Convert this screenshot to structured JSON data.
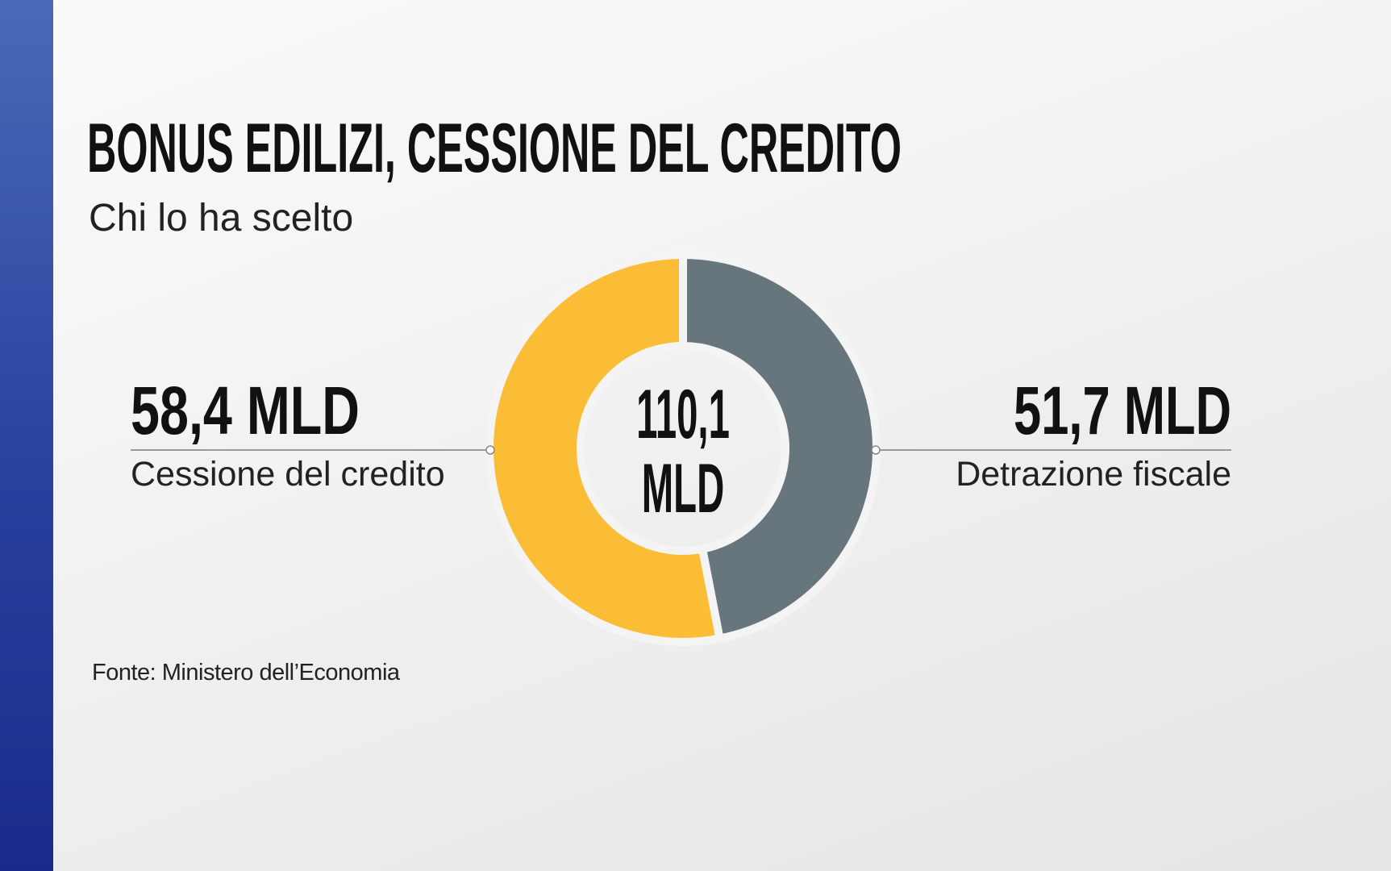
{
  "chart_data": {
    "type": "pie",
    "title": "BONUS EDILIZI, CESSIONE DEL CREDITO",
    "subtitle": "Chi lo ha scelto",
    "categories": [
      "Cessione del credito",
      "Detrazione fiscale"
    ],
    "values": [
      58.4,
      51.7
    ],
    "value_labels": [
      "58,4 MLD",
      "51,7 MLD"
    ],
    "colors": [
      "#fbbd35",
      "#66767c"
    ],
    "center_label": "110,1 MLD",
    "source": "Fonte: Ministero dell’Economia"
  }
}
